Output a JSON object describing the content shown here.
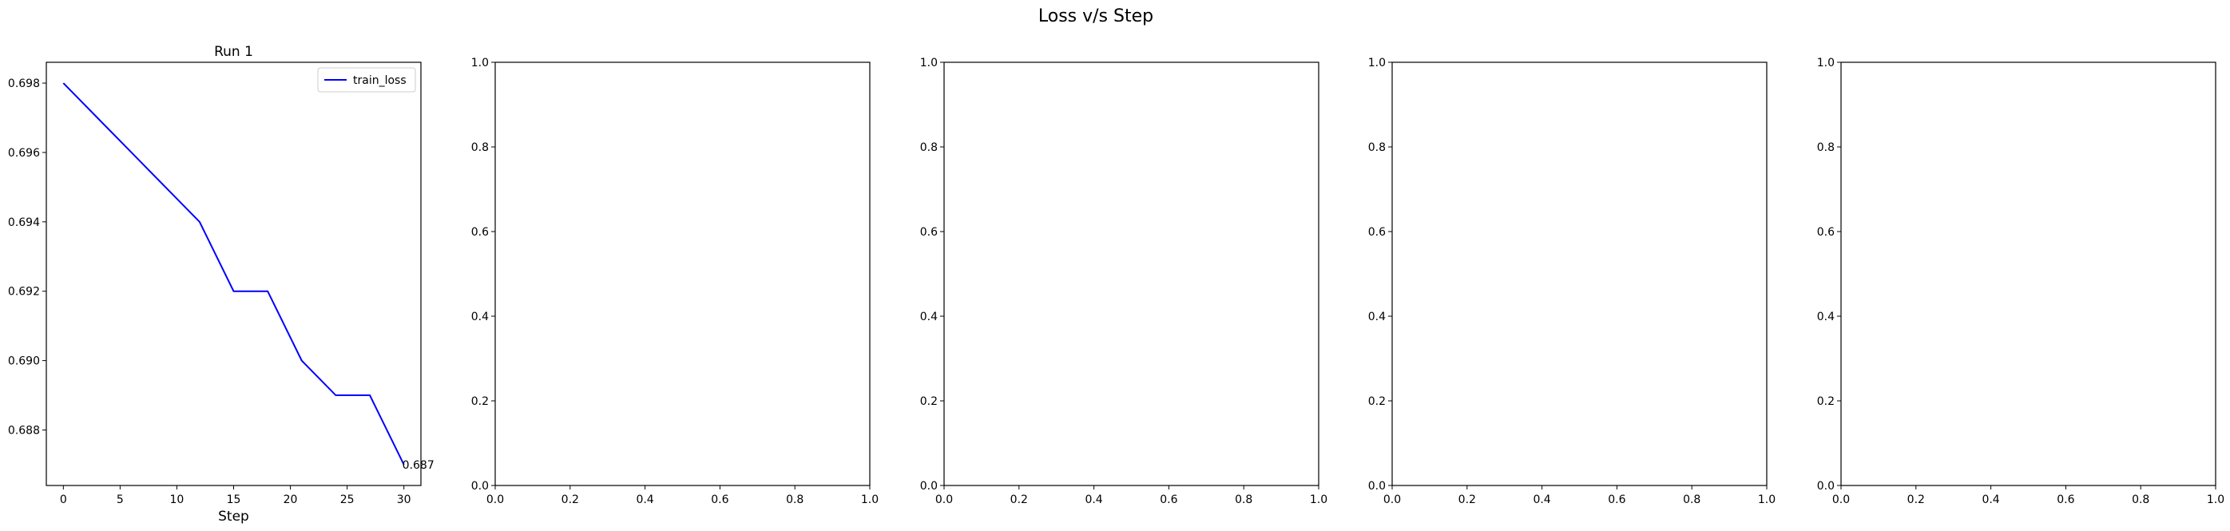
{
  "suptitle": "Loss v/s Step",
  "chart_data": [
    {
      "type": "line",
      "title": "Run 1",
      "xlabel": "Step",
      "ylabel": "",
      "xlim": [
        -1.5,
        31.5
      ],
      "ylim": [
        0.6864,
        0.6986
      ],
      "xticks": [
        "0",
        "5",
        "10",
        "15",
        "20",
        "25",
        "30"
      ],
      "yticks": [
        "0.688",
        "0.690",
        "0.692",
        "0.694",
        "0.696",
        "0.698"
      ],
      "series": [
        {
          "name": "train_loss",
          "color": "#0000ff",
          "x": [
            0,
            3,
            6,
            9,
            12,
            15,
            18,
            21,
            24,
            27,
            30
          ],
          "y": [
            0.698,
            0.697,
            0.696,
            0.695,
            0.694,
            0.692,
            0.692,
            0.69,
            0.689,
            0.689,
            0.687
          ]
        }
      ],
      "annotations": [
        {
          "x": 30,
          "y": 0.687,
          "text": "0.687"
        }
      ],
      "legend": "upper-right",
      "grid": false
    },
    {
      "type": "line",
      "title": "",
      "xlabel": "",
      "xlim": [
        0,
        1
      ],
      "ylim": [
        0,
        1
      ],
      "xticks": [
        "0.0",
        "0.2",
        "0.4",
        "0.6",
        "0.8",
        "1.0"
      ],
      "yticks": [
        "0.0",
        "0.2",
        "0.4",
        "0.6",
        "0.8",
        "1.0"
      ],
      "series": [],
      "grid": false
    },
    {
      "type": "line",
      "title": "",
      "xlabel": "",
      "xlim": [
        0,
        1
      ],
      "ylim": [
        0,
        1
      ],
      "xticks": [
        "0.0",
        "0.2",
        "0.4",
        "0.6",
        "0.8",
        "1.0"
      ],
      "yticks": [
        "0.0",
        "0.2",
        "0.4",
        "0.6",
        "0.8",
        "1.0"
      ],
      "series": [],
      "grid": false
    },
    {
      "type": "line",
      "title": "",
      "xlabel": "",
      "xlim": [
        0,
        1
      ],
      "ylim": [
        0,
        1
      ],
      "xticks": [
        "0.0",
        "0.2",
        "0.4",
        "0.6",
        "0.8",
        "1.0"
      ],
      "yticks": [
        "0.0",
        "0.2",
        "0.4",
        "0.6",
        "0.8",
        "1.0"
      ],
      "series": [],
      "grid": false
    },
    {
      "type": "line",
      "title": "",
      "xlabel": "",
      "xlim": [
        0,
        1
      ],
      "ylim": [
        0,
        1
      ],
      "xticks": [
        "0.0",
        "0.2",
        "0.4",
        "0.6",
        "0.8",
        "1.0"
      ],
      "yticks": [
        "0.0",
        "0.2",
        "0.4",
        "0.6",
        "0.8",
        "1.0"
      ],
      "series": [],
      "grid": false
    }
  ]
}
